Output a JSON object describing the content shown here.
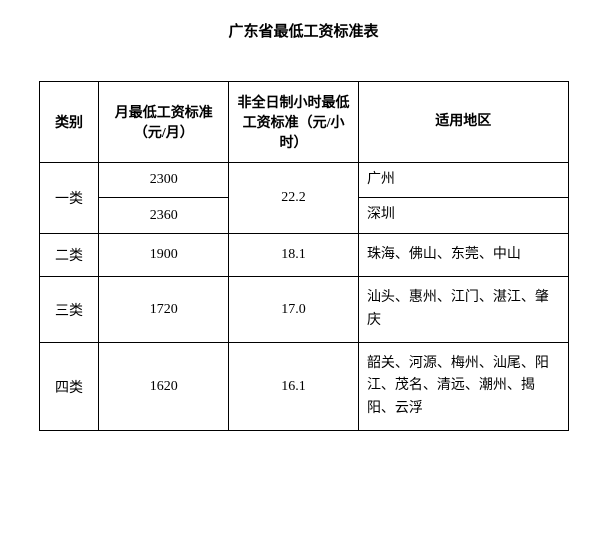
{
  "title": "广东省最低工资标准表",
  "headers": {
    "category": "类别",
    "monthly": "月最低工资标准（元/月）",
    "hourly": "非全日制小时最低工资标准（元/小时）",
    "region": "适用地区"
  },
  "rows": {
    "tier1": {
      "category": "一类",
      "monthly_a": "2300",
      "monthly_b": "2360",
      "hourly": "22.2",
      "region_a": "广州",
      "region_b": "深圳"
    },
    "tier2": {
      "category": "二类",
      "monthly": "1900",
      "hourly": "18.1",
      "region": "珠海、佛山、东莞、中山"
    },
    "tier3": {
      "category": "三类",
      "monthly": "1720",
      "hourly": "17.0",
      "region": "汕头、惠州、江门、湛江、肇庆"
    },
    "tier4": {
      "category": "四类",
      "monthly": "1620",
      "hourly": "16.1",
      "region": "韶关、河源、梅州、汕尾、阳江、茂名、清远、潮州、揭阳、云浮"
    }
  },
  "styling": {
    "background_color": "#ffffff",
    "text_color": "#000000",
    "border_color": "#000000",
    "title_fontsize": 15,
    "cell_fontsize": 14,
    "font_family": "SimSun"
  }
}
